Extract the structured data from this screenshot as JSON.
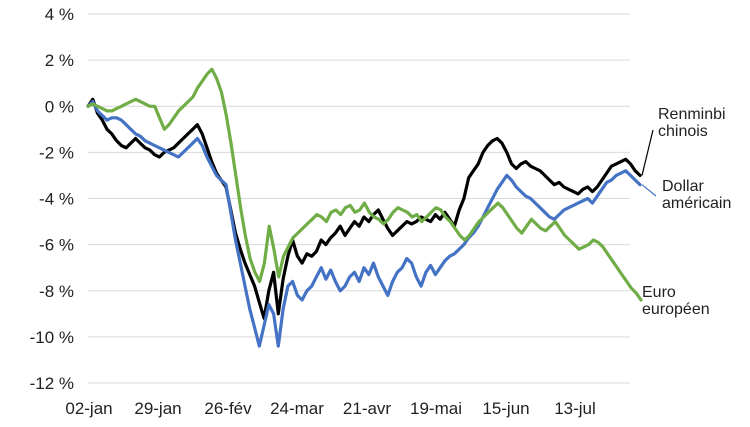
{
  "chart_data": {
    "type": "line",
    "x_ticks": [
      "02-jan",
      "29-jan",
      "26-fév",
      "24-mar",
      "21-avr",
      "19-mai",
      "15-jun",
      "13-jul"
    ],
    "y_ticks": [
      "4 %",
      "2 %",
      "0 %",
      "-2 %",
      "-4 %",
      "-6 %",
      "-8 %",
      "-10 %",
      "-12 %"
    ],
    "ylim": [
      -12,
      4
    ],
    "grid": "horizontal",
    "legend": "inline-right",
    "series": [
      {
        "name": "Renminbi chinois",
        "label_lines": [
          "Renminbi",
          "chinois"
        ],
        "color": "#000000",
        "values": [
          0,
          0.3,
          -0.3,
          -0.6,
          -1.0,
          -1.2,
          -1.5,
          -1.7,
          -1.8,
          -1.6,
          -1.4,
          -1.6,
          -1.8,
          -1.9,
          -2.1,
          -2.2,
          -2.0,
          -1.9,
          -1.8,
          -1.6,
          -1.4,
          -1.2,
          -1.0,
          -0.8,
          -1.2,
          -1.8,
          -2.4,
          -2.9,
          -3.2,
          -3.5,
          -4.5,
          -5.5,
          -6.2,
          -6.8,
          -7.3,
          -7.8,
          -8.5,
          -9.2,
          -8.0,
          -7.2,
          -9.0,
          -7.5,
          -6.5,
          -5.8,
          -6.5,
          -6.8,
          -6.4,
          -6.5,
          -6.3,
          -5.8,
          -6.0,
          -5.7,
          -5.5,
          -5.2,
          -5.6,
          -5.3,
          -5.0,
          -5.2,
          -4.8,
          -5.0,
          -4.7,
          -4.5,
          -4.9,
          -5.3,
          -5.6,
          -5.4,
          -5.2,
          -5.0,
          -5.1,
          -5.0,
          -4.8,
          -4.9,
          -5.0,
          -4.7,
          -4.9,
          -4.6,
          -4.9,
          -5.2,
          -4.5,
          -4.0,
          -3.1,
          -2.8,
          -2.5,
          -2.0,
          -1.7,
          -1.5,
          -1.4,
          -1.6,
          -2.0,
          -2.5,
          -2.7,
          -2.5,
          -2.4,
          -2.6,
          -2.7,
          -2.8,
          -3.0,
          -3.2,
          -3.4,
          -3.3,
          -3.5,
          -3.6,
          -3.7,
          -3.8,
          -3.6,
          -3.5,
          -3.7,
          -3.5,
          -3.2,
          -2.9,
          -2.6,
          -2.5,
          -2.4,
          -2.3,
          -2.5,
          -2.8,
          -3.0
        ]
      },
      {
        "name": "Dollar américain",
        "label_lines": [
          "Dollar",
          "américain"
        ],
        "color": "#4472c4",
        "values": [
          0,
          0.2,
          -0.2,
          -0.4,
          -0.6,
          -0.5,
          -0.5,
          -0.6,
          -0.8,
          -1.0,
          -1.2,
          -1.3,
          -1.5,
          -1.6,
          -1.7,
          -1.8,
          -1.9,
          -2.0,
          -2.1,
          -2.2,
          -2.0,
          -1.8,
          -1.6,
          -1.4,
          -1.7,
          -2.2,
          -2.6,
          -3.0,
          -3.2,
          -3.4,
          -4.6,
          -5.8,
          -6.8,
          -7.8,
          -8.8,
          -9.6,
          -10.4,
          -9.5,
          -8.6,
          -9.0,
          -10.4,
          -8.8,
          -7.8,
          -7.6,
          -8.2,
          -8.4,
          -8.0,
          -7.8,
          -7.4,
          -7.0,
          -7.5,
          -7.1,
          -7.6,
          -8.0,
          -7.8,
          -7.4,
          -7.2,
          -7.6,
          -7.0,
          -7.3,
          -6.8,
          -7.4,
          -7.8,
          -8.2,
          -7.6,
          -7.2,
          -7.0,
          -6.6,
          -6.8,
          -7.4,
          -7.8,
          -7.2,
          -6.9,
          -7.3,
          -7.0,
          -6.7,
          -6.5,
          -6.4,
          -6.2,
          -6.0,
          -5.7,
          -5.5,
          -5.2,
          -4.8,
          -4.4,
          -4.0,
          -3.6,
          -3.3,
          -3.0,
          -3.2,
          -3.5,
          -3.7,
          -3.9,
          -4.0,
          -4.2,
          -4.4,
          -4.6,
          -4.8,
          -4.9,
          -4.7,
          -4.5,
          -4.4,
          -4.3,
          -4.2,
          -4.1,
          -4.0,
          -4.2,
          -3.9,
          -3.6,
          -3.3,
          -3.2,
          -3.0,
          -2.9,
          -2.8,
          -3.0,
          -3.2,
          -3.4
        ]
      },
      {
        "name": "Euro européen",
        "label_lines": [
          "Euro",
          "européen"
        ],
        "color": "#70ad47",
        "values": [
          0,
          0.1,
          0.0,
          -0.1,
          -0.2,
          -0.2,
          -0.1,
          0.0,
          0.1,
          0.2,
          0.3,
          0.2,
          0.1,
          0.0,
          0.0,
          -0.5,
          -1.0,
          -0.8,
          -0.5,
          -0.2,
          0.0,
          0.2,
          0.4,
          0.8,
          1.1,
          1.4,
          1.6,
          1.2,
          0.6,
          -0.4,
          -1.6,
          -3.0,
          -4.4,
          -5.6,
          -6.6,
          -7.2,
          -7.6,
          -6.8,
          -5.2,
          -6.2,
          -7.4,
          -6.5,
          -6.1,
          -5.7,
          -5.5,
          -5.3,
          -5.1,
          -4.9,
          -4.7,
          -4.8,
          -5.0,
          -4.6,
          -4.5,
          -4.7,
          -4.4,
          -4.3,
          -4.6,
          -4.5,
          -4.2,
          -4.6,
          -4.8,
          -4.9,
          -5.1,
          -4.9,
          -4.6,
          -4.4,
          -4.5,
          -4.6,
          -4.8,
          -4.7,
          -5.0,
          -4.8,
          -4.6,
          -4.4,
          -4.5,
          -4.8,
          -5.0,
          -5.3,
          -5.6,
          -5.8,
          -5.6,
          -5.3,
          -5.0,
          -4.8,
          -4.6,
          -4.4,
          -4.2,
          -4.4,
          -4.7,
          -5.0,
          -5.3,
          -5.5,
          -5.2,
          -4.9,
          -5.1,
          -5.3,
          -5.4,
          -5.2,
          -5.0,
          -5.3,
          -5.6,
          -5.8,
          -6.0,
          -6.2,
          -6.1,
          -6.0,
          -5.8,
          -5.9,
          -6.1,
          -6.4,
          -6.7,
          -7.0,
          -7.3,
          -7.6,
          -7.9,
          -8.1,
          -8.4
        ]
      }
    ]
  }
}
